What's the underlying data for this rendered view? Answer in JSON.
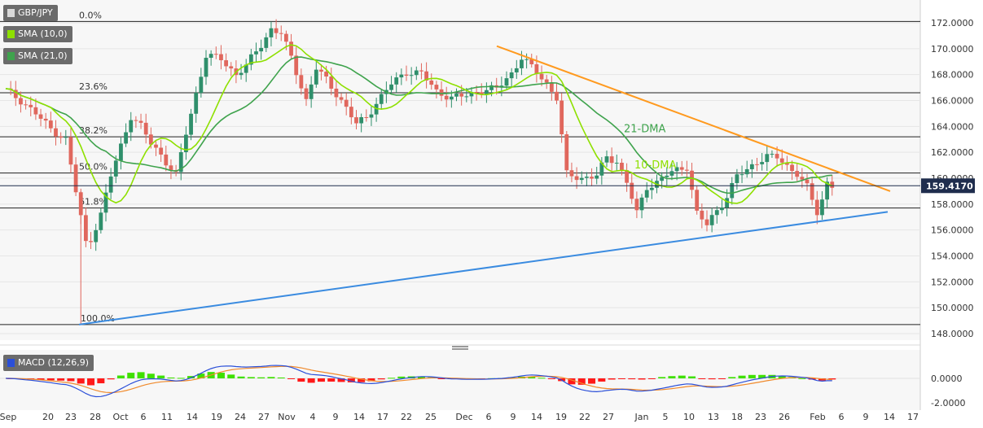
{
  "window": {
    "symbol": "GBP/JPY",
    "indicators": [
      {
        "label": "SMA (10,0)",
        "color": "#8ee000"
      },
      {
        "label": "SMA (21,0)",
        "color": "#3fa34d"
      }
    ],
    "macd_label": "MACD (12,26,9)"
  },
  "colors": {
    "up": "#2f8f6b",
    "down": "#e0675d",
    "sma10": "#8ee000",
    "sma21": "#3fa34d",
    "resistance": "#ff9a1f",
    "support": "#3a8be0",
    "macd": "#2b4fd8",
    "signal": "#f08a2c",
    "hist_pos": "#3fe000",
    "hist_neg": "#ff1a1a"
  },
  "chart_data": {
    "type": "candlestick",
    "price_axis": {
      "range": [
        147.0,
        173.0
      ],
      "ticks": [
        "172.0000",
        "170.0000",
        "168.0000",
        "166.0000",
        "164.0000",
        "162.0000",
        "160.0000",
        "158.0000",
        "156.0000",
        "154.0000",
        "152.0000",
        "150.0000",
        "148.0000"
      ]
    },
    "last_price": "159.4170",
    "x_axis_labels": [
      "Sep",
      "20",
      "23",
      "28",
      "Oct",
      "6",
      "11",
      "14",
      "19",
      "24",
      "27",
      "Nov",
      "4",
      "9",
      "14",
      "17",
      "22",
      "25",
      "Dec",
      "6",
      "9",
      "14",
      "19",
      "22",
      "27",
      "Jan",
      "5",
      "10",
      "13",
      "18",
      "23",
      "26",
      "Feb",
      "6",
      "9",
      "14",
      "17"
    ],
    "fibonacci": [
      {
        "label": "0.0%",
        "price": 172.1
      },
      {
        "label": "23.6%",
        "price": 166.6
      },
      {
        "label": "38.2%",
        "price": 163.2
      },
      {
        "label": "50.0%",
        "price": 160.4
      },
      {
        "label": "61.8%",
        "price": 157.7
      },
      {
        "label": "100.0%",
        "price": 148.7
      }
    ],
    "annotations": [
      {
        "text": "21-DMA",
        "price": 163.8
      },
      {
        "text": "10-DMA",
        "price": 161.0
      }
    ],
    "macd_axis": {
      "ticks": [
        "0.0000",
        "-2.0000"
      ]
    }
  }
}
